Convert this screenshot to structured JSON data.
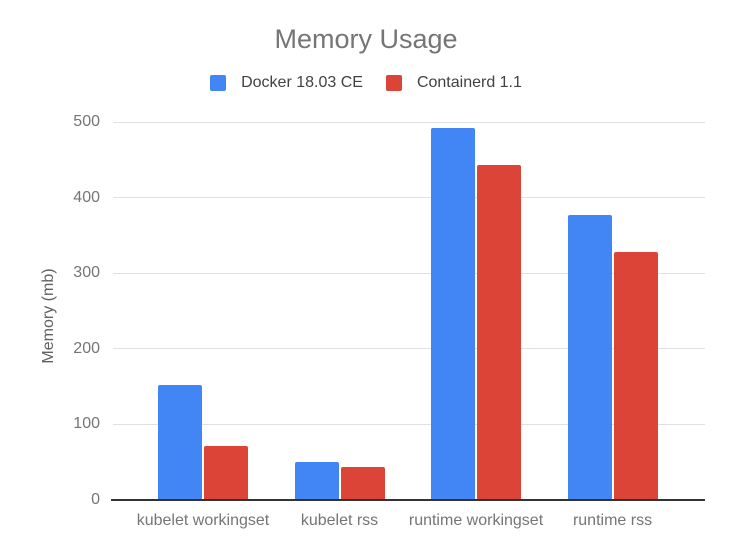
{
  "chart_data": {
    "type": "bar",
    "title": "Memory Usage",
    "ylabel": "Memory (mb)",
    "xlabel": "",
    "categories": [
      "kubelet workingset",
      "kubelet rss",
      "runtime workingset",
      "runtime rss"
    ],
    "series": [
      {
        "name": "Docker 18.03 CE",
        "color": "#4285F4",
        "values": [
          152,
          50,
          492,
          377
        ]
      },
      {
        "name": "Containerd 1.1",
        "color": "#DB4437",
        "values": [
          72,
          43,
          443,
          328
        ]
      }
    ],
    "ylim": [
      0,
      500
    ],
    "yticks": [
      0,
      100,
      200,
      300,
      400,
      500
    ],
    "grid": "horizontal",
    "legend_position": "top"
  },
  "colors": {
    "background": "#ffffff",
    "title_text": "#757575",
    "axis_title_text": "#616161",
    "tick_text": "#757575",
    "legend_text": "#424242",
    "gridline": "#e0e0e0",
    "baseline": "#333333"
  }
}
